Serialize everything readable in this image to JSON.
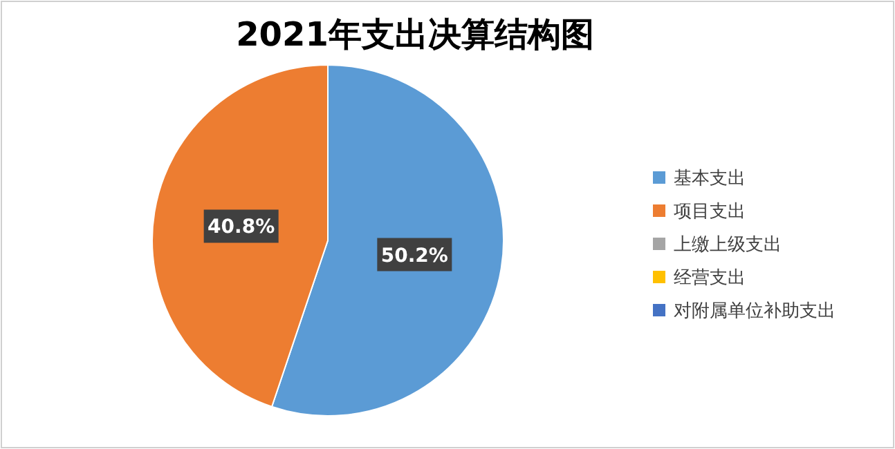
{
  "chart_data": {
    "type": "pie",
    "title": "2021年支出决算结构图",
    "categories": [
      "基本支出",
      "项目支出",
      "上缴上级支出",
      "经营支出",
      "对附属单位补助支出"
    ],
    "values": [
      50.2,
      40.8,
      0,
      0,
      0
    ],
    "colors": [
      "#5b9bd5",
      "#ed7d31",
      "#a5a5a5",
      "#ffc000",
      "#4472c4"
    ],
    "value_labels": [
      "50.2%",
      "40.8%",
      null,
      null,
      null
    ],
    "legend": "right"
  }
}
